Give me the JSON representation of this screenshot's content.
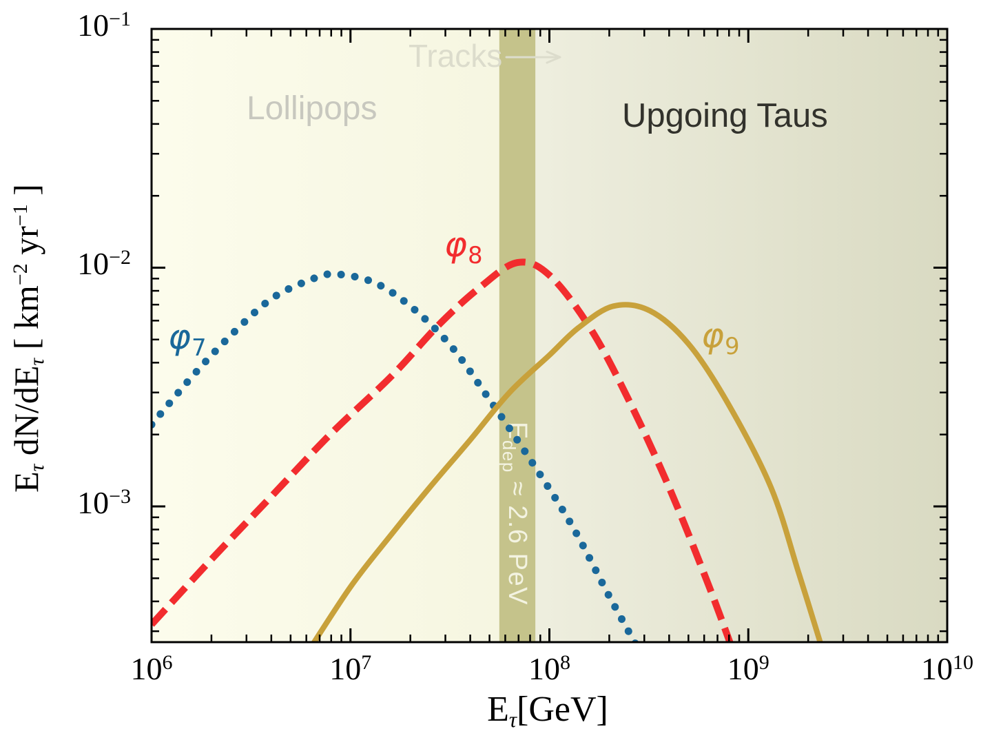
{
  "chart_data": {
    "type": "line",
    "title": "",
    "xlabel": "E_tau [GeV]",
    "ylabel": "E_tau dN/dE_tau [ km^-2 yr^-1 ]",
    "xlabel_parts": [
      "E",
      "τ",
      "[GeV]"
    ],
    "ylabel_parts": [
      "E",
      "τ",
      " dN/dE",
      "τ",
      " [ km",
      "−2",
      " yr",
      "−1",
      " ]"
    ],
    "x_scale": "log",
    "y_scale": "log",
    "xlim": [
      1000000.0,
      10000000000.0
    ],
    "ylim": [
      0.00027,
      0.1
    ],
    "grid": false,
    "legend": "none",
    "frame_color": "#000000",
    "x_ticks": [
      {
        "base": "10",
        "exp": "6",
        "value": 1000000.0
      },
      {
        "base": "10",
        "exp": "7",
        "value": 10000000.0
      },
      {
        "base": "10",
        "exp": "8",
        "value": 100000000.0
      },
      {
        "base": "10",
        "exp": "9",
        "value": 1000000000.0
      },
      {
        "base": "10",
        "exp": "10",
        "value": 10000000000.0
      }
    ],
    "y_ticks": [
      {
        "base": "10",
        "exp": "−1",
        "value": 0.1
      },
      {
        "base": "10",
        "exp": "−2",
        "value": 0.01
      },
      {
        "base": "10",
        "exp": "−3",
        "value": 0.001
      }
    ],
    "regions": [
      {
        "label": "Lollipops",
        "x_from": 1000000.0,
        "x_to": 56000000.0,
        "color_from": "#fcfcec",
        "color_to": "#f6f6e1",
        "label_color": "#c8c8bf"
      },
      {
        "label": "Upgoing Taus",
        "x_from": 56000000.0,
        "x_to": 10000000000.0,
        "color_from": "#f0f0e1",
        "color_to": "#d9dac2",
        "label_color": "#32322c"
      },
      {
        "label": "Tracks",
        "x_from": 56000000.0,
        "x_to": 10000000000.0,
        "label_color": "#dcdccc"
      }
    ],
    "band": {
      "label": "E_dep ≈ 2.6 PeV",
      "label_parts": [
        "E",
        "dep",
        " ≈ 2.6 PeV"
      ],
      "x_from": 56000000.0,
      "x_to": 85000000.0,
      "color": "#c5c38b",
      "label_color": "#f3f3e1"
    },
    "series": [
      {
        "name": "φ7",
        "name_parts": {
          "symbol": "φ",
          "sub": "7"
        },
        "style": "dotted",
        "color": "#1a689a",
        "points": [
          [
            1000000.0,
            0.0022
          ],
          [
            1600000.0,
            0.0035
          ],
          [
            2500000.0,
            0.0052
          ],
          [
            4000000.0,
            0.0074
          ],
          [
            6300000.0,
            0.0089
          ],
          [
            8300000.0,
            0.0094
          ],
          [
            13000000.0,
            0.0087
          ],
          [
            20000000.0,
            0.0069
          ],
          [
            32000000.0,
            0.0047
          ],
          [
            50000000.0,
            0.0028
          ],
          [
            79000000.0,
            0.0016
          ],
          [
            130000000.0,
            0.00083
          ],
          [
            200000000.0,
            0.00042
          ],
          [
            290000000.0,
            0.00024
          ]
        ]
      },
      {
        "name": "φ8",
        "name_parts": {
          "symbol": "φ",
          "sub": "8"
        },
        "style": "dashed",
        "color": "#f22c2e",
        "points": [
          [
            1000000.0,
            0.00032
          ],
          [
            2000000.0,
            0.0006
          ],
          [
            4000000.0,
            0.0011
          ],
          [
            7900000.0,
            0.002
          ],
          [
            16000000.0,
            0.0035
          ],
          [
            28000000.0,
            0.0058
          ],
          [
            45000000.0,
            0.0083
          ],
          [
            69000000.0,
            0.0105
          ],
          [
            100000000.0,
            0.0093
          ],
          [
            160000000.0,
            0.0056
          ],
          [
            250000000.0,
            0.0028
          ],
          [
            400000000.0,
            0.0012
          ],
          [
            630000000.0,
            0.00047
          ],
          [
            850000000.0,
            0.00024
          ]
        ]
      },
      {
        "name": "φ9",
        "name_parts": {
          "symbol": "φ",
          "sub": "9"
        },
        "style": "solid",
        "color": "#c8a13b",
        "points": [
          [
            6000000.0,
            0.00024
          ],
          [
            10000000.0,
            0.00046
          ],
          [
            16000000.0,
            0.00076
          ],
          [
            25000000.0,
            0.0012
          ],
          [
            40000000.0,
            0.0019
          ],
          [
            63000000.0,
            0.003
          ],
          [
            100000000.0,
            0.0043
          ],
          [
            140000000.0,
            0.0056
          ],
          [
            210000000.0,
            0.0069
          ],
          [
            320000000.0,
            0.0066
          ],
          [
            500000000.0,
            0.0048
          ],
          [
            790000000.0,
            0.0027
          ],
          [
            1300000000.0,
            0.0012
          ],
          [
            1800000000.0,
            0.00052
          ],
          [
            2400000000.0,
            0.00024
          ]
        ]
      }
    ]
  }
}
